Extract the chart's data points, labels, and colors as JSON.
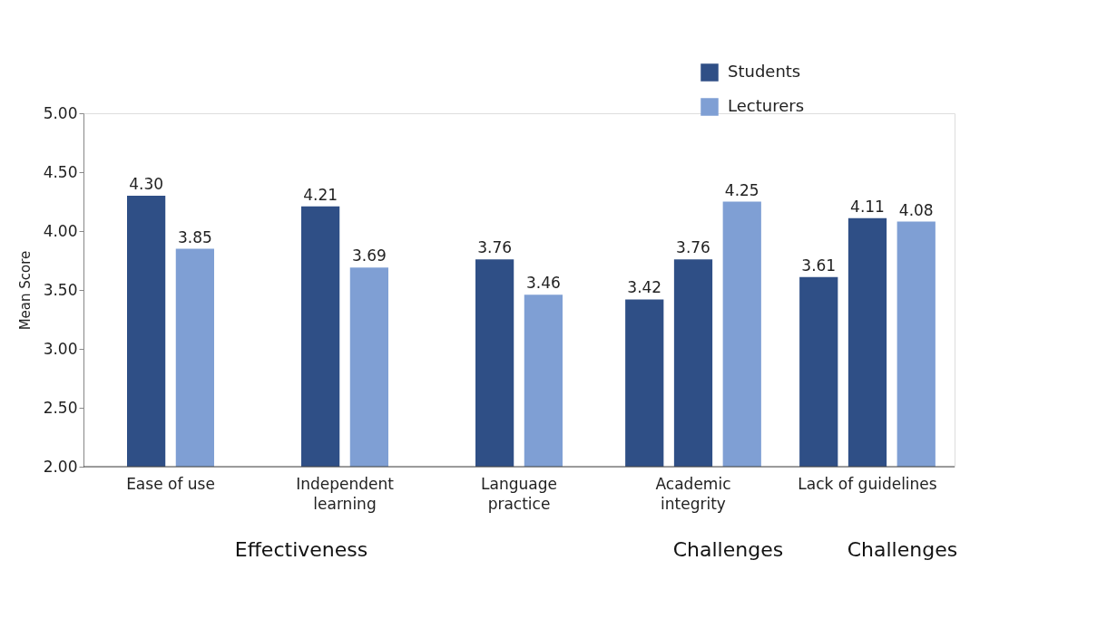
{
  "chart_data": {
    "type": "bar",
    "ylabel": "Mean Score",
    "categories": [
      "Ease of use",
      "Independent learning",
      "Language practice",
      "Academic integrity",
      "Lack of guidelines"
    ],
    "series": [
      {
        "name": "Students",
        "color": "#2f4f86",
        "values": [
          4.3,
          4.21,
          3.76,
          3.42,
          3.61
        ]
      },
      {
        "color": "#2f4f86",
        "values": [
          null,
          null,
          null,
          3.76,
          4.11
        ]
      },
      {
        "name": "Lecturers",
        "color": "#7f9fd4",
        "values": [
          3.85,
          3.69,
          3.46,
          4.25,
          4.08
        ]
      }
    ],
    "ylim": [
      2,
      5
    ],
    "yticks": [
      {
        "value": 2,
        "label": "2.00"
      },
      {
        "value": 2.5,
        "label": "2.50"
      },
      {
        "value": 3,
        "label": "3.00"
      },
      {
        "value": 3.5,
        "label": "3.50"
      },
      {
        "value": 4,
        "label": "4.00"
      },
      {
        "value": 4.5,
        "label": "4.50"
      },
      {
        "value": 5,
        "label": "5.00"
      }
    ],
    "value_labels": [
      [
        "4.30",
        "4.21",
        "3.76",
        "3.42",
        "3.61"
      ],
      [
        null,
        null,
        null,
        "3.76",
        "4.11"
      ],
      [
        "3.85",
        "3.69",
        "3.46",
        "4.25",
        "4.08"
      ]
    ],
    "grid": false,
    "legend": "top right",
    "annotations": [
      "Effectiveness",
      "Challenges",
      "Challenges"
    ]
  }
}
